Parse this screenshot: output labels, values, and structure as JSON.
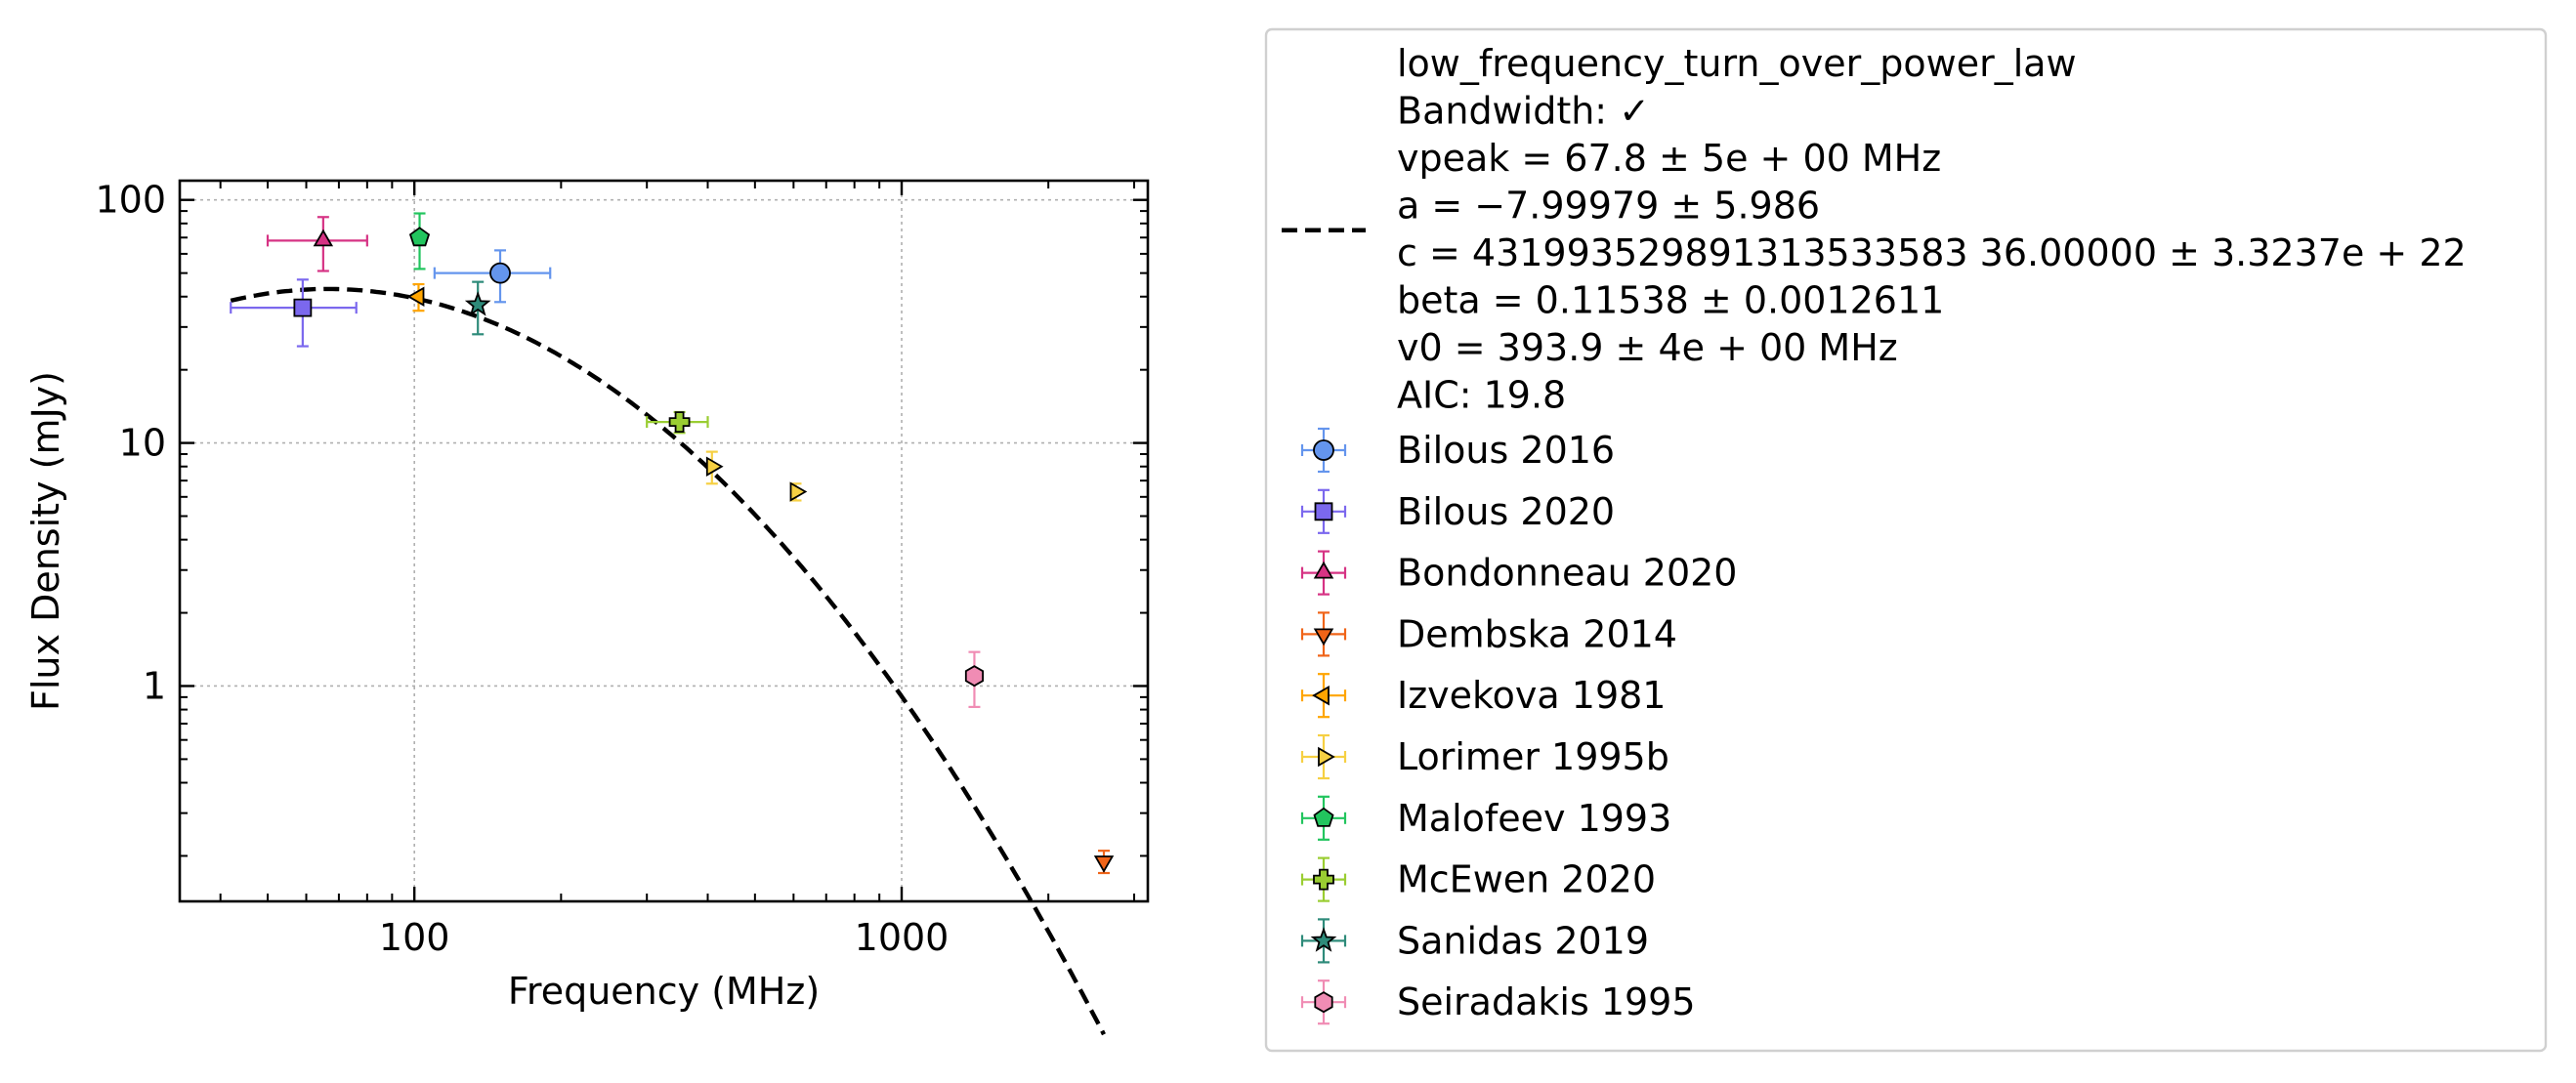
{
  "chart_data": {
    "type": "scatter",
    "xlabel": "Frequency (MHz)",
    "ylabel": "Flux Density (mJy)",
    "xscale": "log",
    "yscale": "log",
    "xlim": [
      33,
      3200
    ],
    "ylim": [
      0.13,
      120
    ],
    "xticks": [
      {
        "value": 100,
        "label": "100"
      },
      {
        "value": 1000,
        "label": "1000"
      }
    ],
    "yticks": [
      {
        "value": 1,
        "label": "1"
      },
      {
        "value": 10,
        "label": "10"
      },
      {
        "value": 100,
        "label": "100"
      }
    ],
    "grid": true,
    "legend_position": "outside right",
    "fit": {
      "name": "low_frequency_turn_over_power_law",
      "style": "dashed",
      "color": "#000000",
      "x_range": [
        42,
        2600
      ],
      "vpeak": 67.8,
      "beta": 0.11538,
      "v0": 393.9,
      "info_lines": [
        "low_frequency_turn_over_power_law",
        "Bandwidth: ✓",
        "vpeak = 67.8 ± 5e + 00 MHz",
        "a = −7.99979 ± 5.986",
        "c = 431993529891313533583 36.00000 ± 3.3237e + 22",
        "beta = 0.11538 ± 0.0012611",
        "v0 = 393.9 ± 4e + 00 MHz",
        "AIC: 19.8"
      ]
    },
    "series": [
      {
        "name": "Bilous 2016",
        "marker": "circle",
        "color": "#6495ed",
        "points": [
          {
            "x": 150,
            "y": 50,
            "xerr": [
              40,
              40
            ],
            "yerr": [
              12,
              12
            ]
          }
        ]
      },
      {
        "name": "Bilous 2020",
        "marker": "square",
        "color": "#7b68ee",
        "points": [
          {
            "x": 59,
            "y": 36,
            "xerr": [
              17,
              17
            ],
            "yerr": [
              11,
              11
            ]
          }
        ]
      },
      {
        "name": "Bondonneau 2020",
        "marker": "triangle-up",
        "color": "#d63384",
        "points": [
          {
            "x": 65,
            "y": 68,
            "xerr": [
              15,
              15
            ],
            "yerr": [
              17,
              17
            ]
          }
        ]
      },
      {
        "name": "Dembska 2014",
        "marker": "triangle-down",
        "color": "#f06418",
        "points": [
          {
            "x": 2600,
            "y": 0.19,
            "xerr": [
              0,
              0
            ],
            "yerr": [
              0.02,
              0.02
            ]
          }
        ]
      },
      {
        "name": "Izvekova 1981",
        "marker": "triangle-left",
        "color": "#ffa500",
        "points": [
          {
            "x": 102,
            "y": 40,
            "xerr": [
              0,
              0
            ],
            "yerr": [
              5,
              5
            ]
          }
        ]
      },
      {
        "name": "Lorimer 1995b",
        "marker": "triangle-right",
        "color": "#f6d043",
        "points": [
          {
            "x": 408,
            "y": 8,
            "xerr": [
              0,
              0
            ],
            "yerr": [
              1.2,
              1.2
            ]
          },
          {
            "x": 606,
            "y": 6.3,
            "xerr": [
              0,
              0
            ],
            "yerr": [
              0.5,
              0.5
            ]
          }
        ]
      },
      {
        "name": "Malofeev 1993",
        "marker": "pentagon",
        "color": "#22c55e",
        "points": [
          {
            "x": 102.5,
            "y": 70,
            "xerr": [
              0,
              0
            ],
            "yerr": [
              18,
              18
            ]
          }
        ]
      },
      {
        "name": "McEwen 2020",
        "marker": "plus",
        "color": "#9acd32",
        "points": [
          {
            "x": 350,
            "y": 12.2,
            "xerr": [
              50,
              50
            ],
            "yerr": [
              1.2,
              1.2
            ]
          }
        ]
      },
      {
        "name": "Sanidas 2019",
        "marker": "star",
        "color": "#2e8b7a",
        "points": [
          {
            "x": 135,
            "y": 37,
            "xerr": [
              0,
              0
            ],
            "yerr": [
              9,
              9
            ]
          }
        ]
      },
      {
        "name": "Seiradakis 1995",
        "marker": "hexagon",
        "color": "#f08cb4",
        "points": [
          {
            "x": 1410,
            "y": 1.1,
            "xerr": [
              0,
              0
            ],
            "yerr": [
              0.28,
              0.28
            ]
          }
        ]
      }
    ]
  }
}
